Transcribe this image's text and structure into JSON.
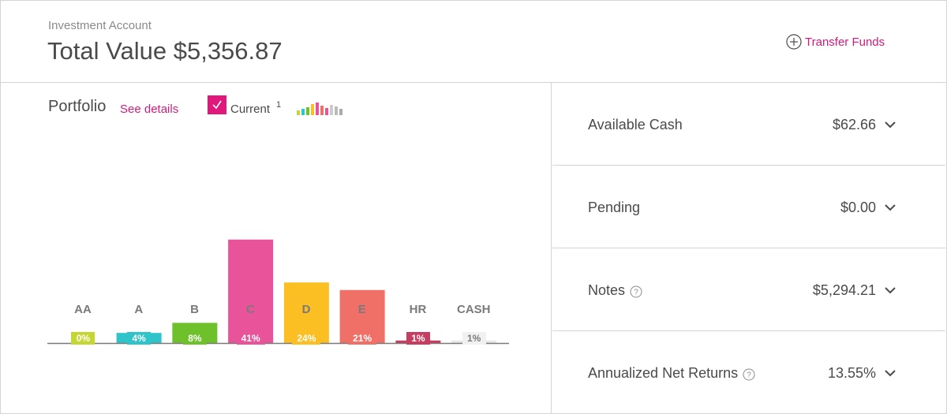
{
  "header": {
    "account_label": "Investment Account",
    "total_label": "Total Value",
    "total_value": "$5,356.87",
    "transfer_label": "Transfer Funds"
  },
  "portfolio": {
    "title": "Portfolio",
    "see_details": "See details",
    "current_label": "Current",
    "current_sup": "1",
    "checkbox_checked": true
  },
  "chart_data": {
    "type": "bar",
    "categories": [
      "AA",
      "A",
      "B",
      "C",
      "D",
      "E",
      "HR",
      "CASH"
    ],
    "values": [
      0,
      4,
      8,
      41,
      24,
      21,
      1,
      1
    ],
    "value_labels": [
      "0%",
      "4%",
      "8%",
      "41%",
      "24%",
      "21%",
      "1%",
      "1%"
    ],
    "colors": [
      "#c4d631",
      "#2ec4c9",
      "#6fc12b",
      "#e8539a",
      "#fbbe23",
      "#f07068",
      "#c73d62",
      "#e8e8e8"
    ],
    "ylim": [
      0,
      50
    ],
    "title": "",
    "xlabel": "",
    "ylabel": ""
  },
  "summary": [
    {
      "label": "Available Cash",
      "value": "$62.66",
      "has_help": false
    },
    {
      "label": "Pending",
      "value": "$0.00",
      "has_help": false
    },
    {
      "label": "Notes",
      "value": "$5,294.21",
      "has_help": true
    },
    {
      "label": "Annualized Net Returns",
      "value": "13.55%",
      "has_help": true
    }
  ],
  "colors": {
    "accent": "#d6197a",
    "checkbox": "#e0187c",
    "border": "#d4d4d4"
  },
  "icons": {
    "transfer": "plus-circle-icon",
    "checkbox": "checkmark-icon",
    "mini_chart": "bar-chart-icon",
    "help": "question-circle-icon",
    "expand": "chevron-down-icon"
  }
}
